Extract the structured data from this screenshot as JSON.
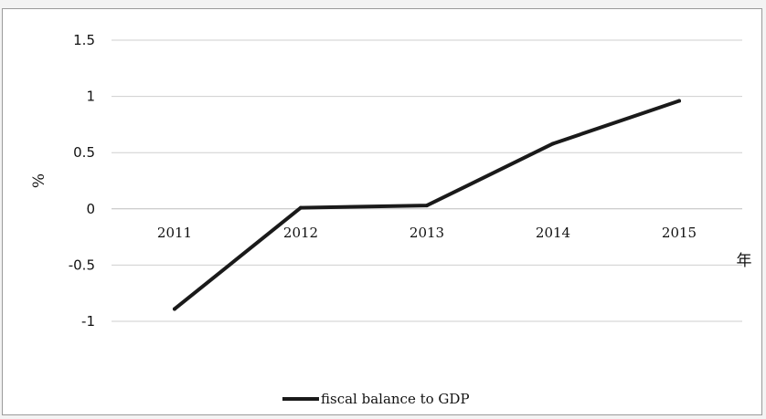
{
  "chart_data": {
    "type": "line",
    "title": "",
    "xlabel": "年",
    "ylabel": "%",
    "categories": [
      "2011",
      "2012",
      "2013",
      "2014",
      "2015"
    ],
    "series": [
      {
        "name": "fiscal balance to GDP",
        "values": [
          -0.89,
          0.01,
          0.03,
          0.58,
          0.96
        ],
        "color": "#1a1a1a"
      }
    ],
    "yticks": [
      "1.5",
      "1",
      "0.5",
      "0",
      "-0.5",
      "-1"
    ],
    "ylim": [
      -1,
      1.5
    ],
    "grid": true,
    "legend_position": "bottom"
  }
}
